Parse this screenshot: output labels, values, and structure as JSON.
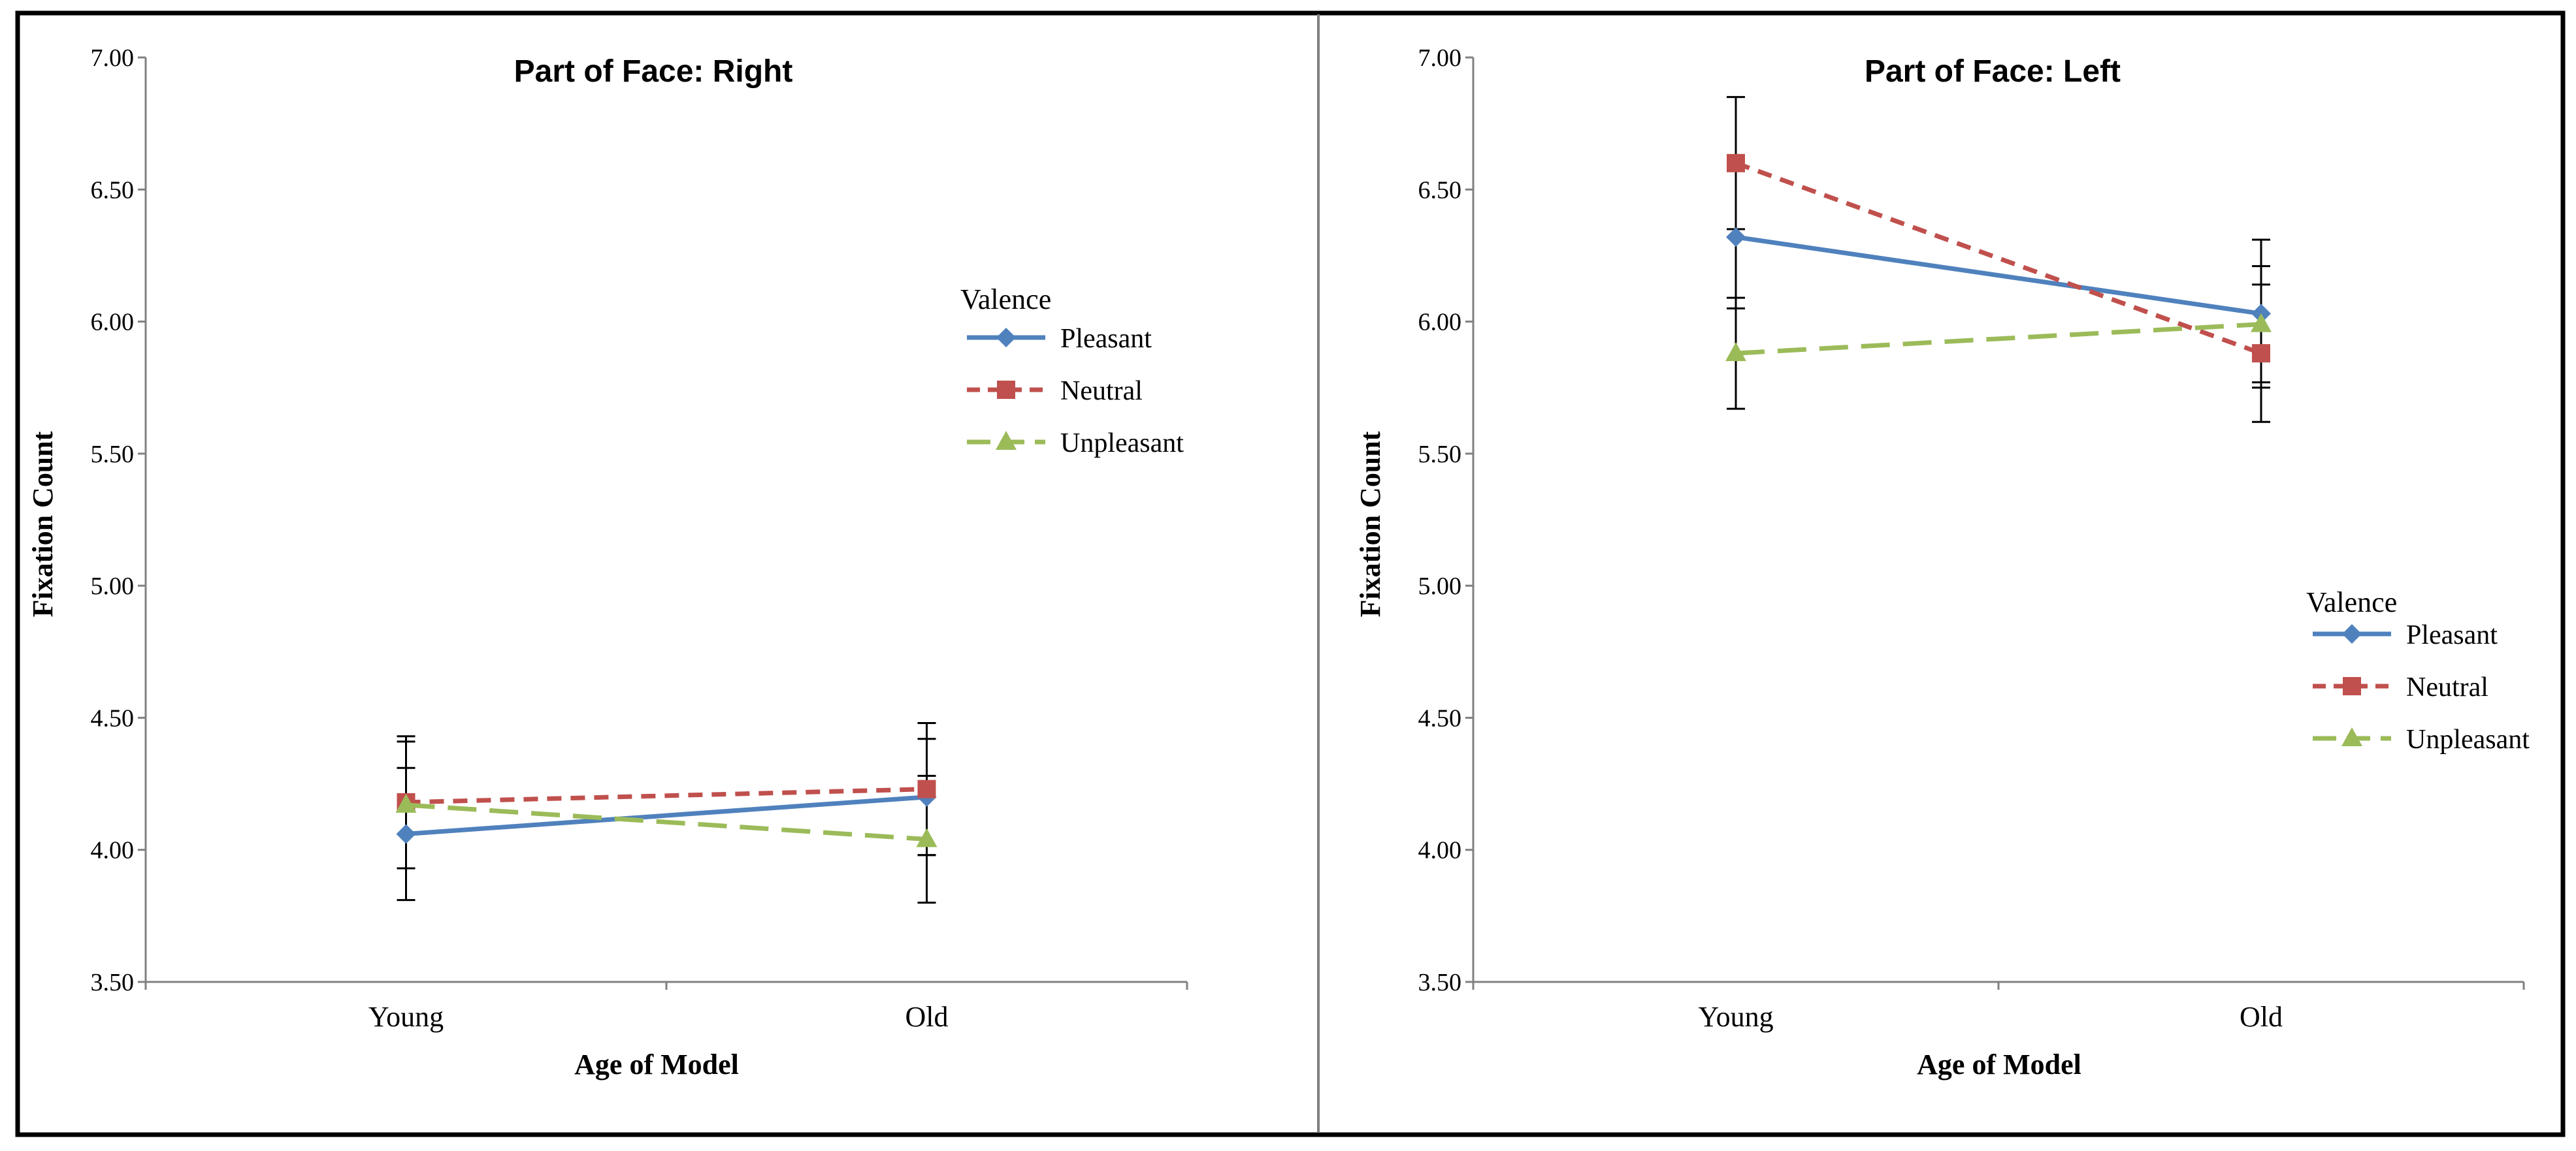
{
  "chart_data": [
    {
      "type": "line",
      "title": "Part of Face: Right",
      "xlabel": "Age of Model",
      "ylabel": "Fixation Count",
      "categories": [
        "Young",
        "Old"
      ],
      "ylim": [
        3.5,
        7.0
      ],
      "yticks": [
        "3.50",
        "4.00",
        "4.50",
        "5.00",
        "5.50",
        "6.00",
        "6.50",
        "7.00"
      ],
      "legend_title": "Valence",
      "legend_position": "right-middle",
      "series": [
        {
          "name": "Pleasant",
          "values": [
            4.06,
            4.2
          ],
          "errors": [
            0.25,
            0.22
          ],
          "color": "#4F81BD",
          "dash": "solid",
          "marker": "diamond"
        },
        {
          "name": "Neutral",
          "values": [
            4.18,
            4.23
          ],
          "errors": [
            0.25,
            0.25
          ],
          "color": "#C0504D",
          "dash": "dashed",
          "marker": "square"
        },
        {
          "name": "Unpleasant",
          "values": [
            4.17,
            4.04
          ],
          "errors": [
            0.24,
            0.24
          ],
          "color": "#9BBB59",
          "dash": "longdash",
          "marker": "triangle"
        }
      ]
    },
    {
      "type": "line",
      "title": "Part of Face: Left",
      "xlabel": "Age of Model",
      "ylabel": "Fixation Count",
      "categories": [
        "Young",
        "Old"
      ],
      "ylim": [
        3.5,
        7.0
      ],
      "yticks": [
        "3.50",
        "4.00",
        "4.50",
        "5.00",
        "5.50",
        "6.00",
        "6.50",
        "7.00"
      ],
      "legend_title": "Valence",
      "legend_position": "right-lower",
      "series": [
        {
          "name": "Pleasant",
          "values": [
            6.32,
            6.03
          ],
          "errors": [
            0.27,
            0.28
          ],
          "color": "#4F81BD",
          "dash": "solid",
          "marker": "diamond"
        },
        {
          "name": "Neutral",
          "values": [
            6.6,
            5.88
          ],
          "errors": [
            0.25,
            0.26
          ],
          "color": "#C0504D",
          "dash": "dashed",
          "marker": "square"
        },
        {
          "name": "Unpleasant",
          "values": [
            5.88,
            5.99
          ],
          "errors": [
            0.21,
            0.22
          ],
          "color": "#9BBB59",
          "dash": "longdash",
          "marker": "triangle"
        }
      ]
    }
  ]
}
